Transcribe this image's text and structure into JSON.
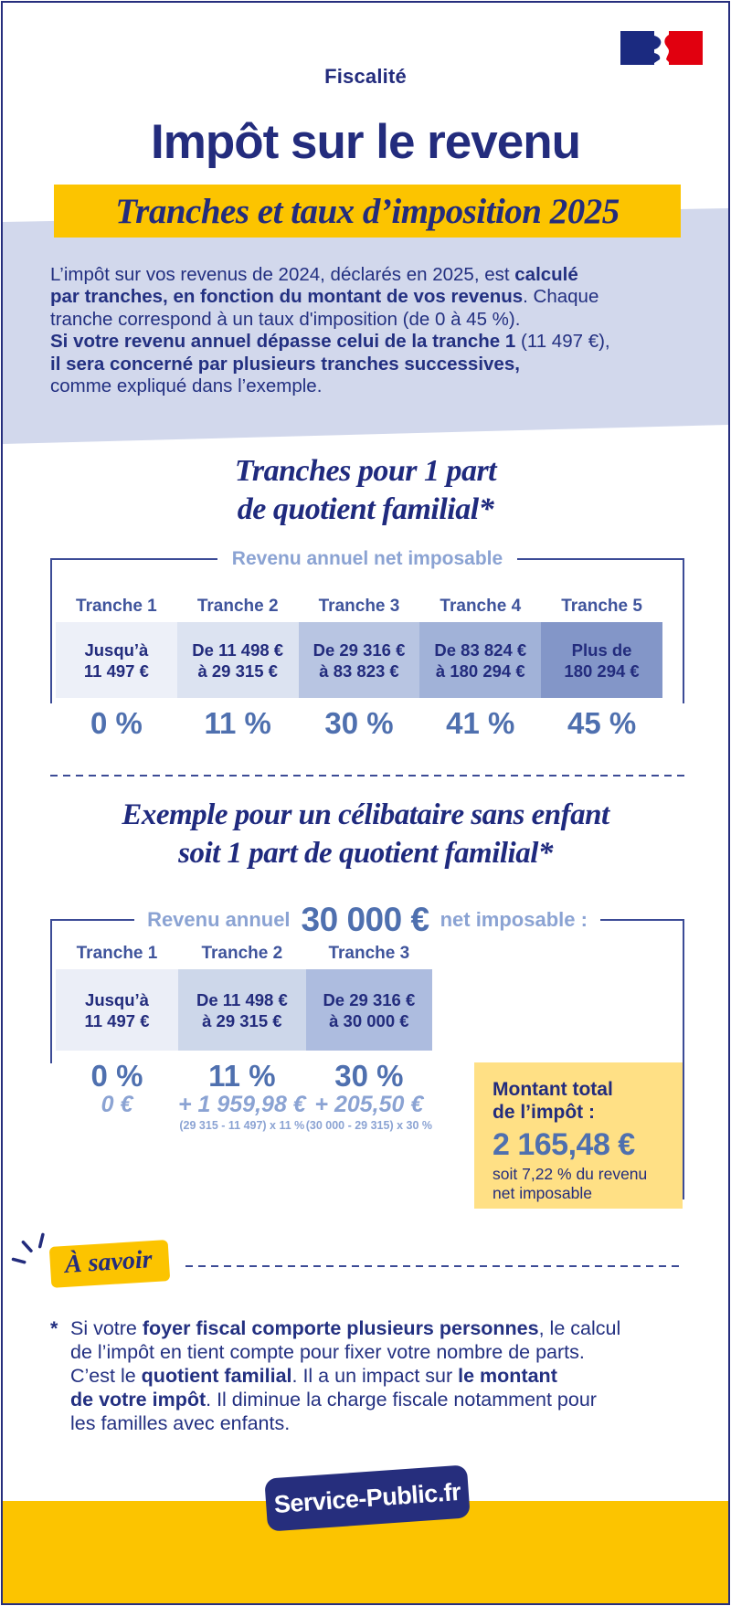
{
  "colors": {
    "navy": "#232c7d",
    "gold": "#fcc400",
    "light_yellow": "#ffe085",
    "lavender": "#d2d8ec",
    "medium_blue": "#4f70af",
    "light_blue_text": "#8ba3d3"
  },
  "header": {
    "category": "Fiscalité",
    "title": "Impôt sur le revenu",
    "banner": "Tranches et taux d’imposition 2025",
    "flag_icon": "french-government-marianne-logo"
  },
  "intro_lines": [
    [
      {
        "t": "L’impôt sur vos revenus de 2024, déclarés en 2025, est "
      },
      {
        "t": "calculé",
        "b": 1
      }
    ],
    [
      {
        "t": "par tranches, en fonction du montant de vos revenus",
        "b": 1
      },
      {
        "t": ". Chaque"
      }
    ],
    [
      {
        "t": "tranche correspond à un taux d'imposition (de 0 à 45 %)."
      }
    ],
    [
      {
        "t": "Si votre revenu annuel dépasse celui de la tranche 1",
        "b": 1
      },
      {
        "t": " (11 497 €),"
      }
    ],
    [
      {
        "t": "il sera concerné par plusieurs tranches successives,",
        "b": 1
      }
    ],
    [
      {
        "t": "comme expliqué dans l’exemple."
      }
    ]
  ],
  "section1": {
    "heading_line1": "Tranches pour 1 part",
    "heading_line2": "de quotient familial*",
    "table_label": "Revenu annuel net imposable",
    "tranches": [
      {
        "name": "Tranche 1",
        "range1": "Jusqu’à",
        "range2": "11 497 €",
        "rate": "0 %",
        "color": "#edf0f8"
      },
      {
        "name": "Tranche 2",
        "range1": "De 11 498 €",
        "range2": "à 29 315 €",
        "rate": "11 %",
        "color": "#dce3f1"
      },
      {
        "name": "Tranche 3",
        "range1": "De 29 316 €",
        "range2": "à 83 823 €",
        "rate": "30 %",
        "color": "#b8c5e2"
      },
      {
        "name": "Tranche 4",
        "range1": "De 83 824 €",
        "range2": "à 180 294 €",
        "rate": "41 %",
        "color": "#a1b2d8"
      },
      {
        "name": "Tranche 5",
        "range1": "Plus de",
        "range2": "180 294 €",
        "rate": "45 %",
        "color": "#8396c8"
      }
    ]
  },
  "section2": {
    "heading_line1": "Exemple pour un célibataire sans enfant",
    "heading_line2": "soit 1 part de quotient familial*",
    "label_prefix": "Revenu annuel",
    "label_amount": "30 000 €",
    "label_suffix": "net imposable :",
    "tranches": [
      {
        "name": "Tranche 1",
        "range1": "Jusqu’à",
        "range2": "11 497 €",
        "rate": "0 %",
        "amount": "0 €",
        "formula": "",
        "color": "#ebeef7"
      },
      {
        "name": "Tranche 2",
        "range1": "De 11 498 €",
        "range2": "à 29 315 €",
        "rate": "11 %",
        "amount": "+ 1 959,98 €",
        "formula": "(29 315 - 11 497) x 11 %",
        "color": "#cdd7ea"
      },
      {
        "name": "Tranche 3",
        "range1": "De 29 316 €",
        "range2": "à 30 000 €",
        "rate": "30 %",
        "amount": "+ 205,50 €",
        "formula": "(30 000 - 29 315) x 30 %",
        "color": "#adbcdf"
      }
    ],
    "total_box": {
      "title_line1": "Montant total",
      "title_line2": "de l’impôt :",
      "amount": "2 165,48 €",
      "note_line1": "soit 7,22 % du revenu",
      "note_line2": "net imposable"
    }
  },
  "a_savoir": {
    "badge": "À savoir"
  },
  "footnote_lines": [
    [
      {
        "t": "Si votre "
      },
      {
        "t": "foyer fiscal comporte plusieurs personnes",
        "b": 1
      },
      {
        "t": ", le calcul"
      }
    ],
    [
      {
        "t": "de l’impôt en tient compte pour fixer votre nombre de parts."
      }
    ],
    [
      {
        "t": "C’est le "
      },
      {
        "t": "quotient familial",
        "b": 1
      },
      {
        "t": ". Il a un impact sur "
      },
      {
        "t": "le montant",
        "b": 1
      }
    ],
    [
      {
        "t": "de votre impôt",
        "b": 1
      },
      {
        "t": ". Il diminue la charge fiscale notamment pour"
      }
    ],
    [
      {
        "t": "les familles avec enfants."
      }
    ]
  ],
  "footnote_star": "*",
  "footer": {
    "brand": "Service-Public.fr"
  }
}
